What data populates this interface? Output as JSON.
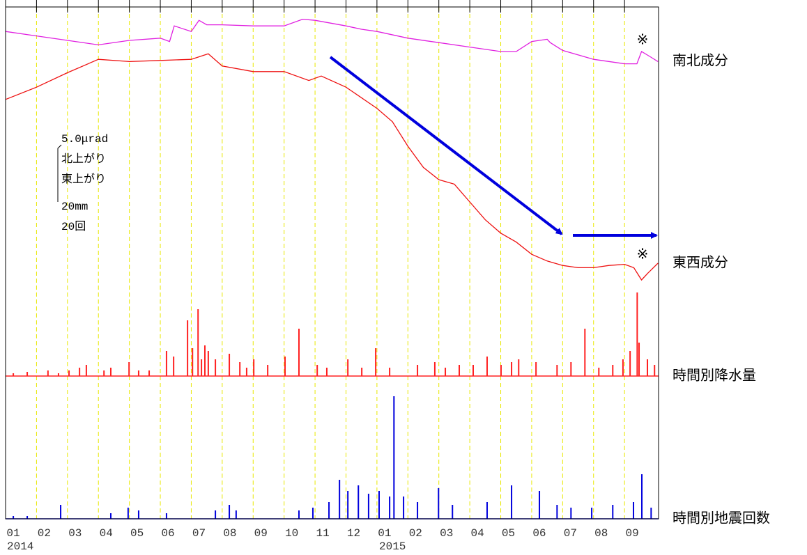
{
  "chart_data": [
    {
      "type": "line",
      "xlim": [
        0,
        21.1
      ],
      "xticks": [
        {
          "value": 0,
          "label": "01"
        },
        {
          "value": 1,
          "label": "02"
        },
        {
          "value": 2,
          "label": "03"
        },
        {
          "value": 3,
          "label": "04"
        },
        {
          "value": 4,
          "label": "05"
        },
        {
          "value": 5,
          "label": "06"
        },
        {
          "value": 6,
          "label": "07"
        },
        {
          "value": 7,
          "label": "08"
        },
        {
          "value": 8,
          "label": "09"
        },
        {
          "value": 9,
          "label": "10"
        },
        {
          "value": 10,
          "label": "11"
        },
        {
          "value": 11,
          "label": "12"
        },
        {
          "value": 12,
          "label": "01"
        },
        {
          "value": 13,
          "label": "02"
        },
        {
          "value": 14,
          "label": "03"
        },
        {
          "value": 15,
          "label": "04"
        },
        {
          "value": 16,
          "label": "05"
        },
        {
          "value": 17,
          "label": "06"
        },
        {
          "value": 18,
          "label": "07"
        },
        {
          "value": 19,
          "label": "08"
        },
        {
          "value": 20,
          "label": "09"
        }
      ],
      "year_labels": [
        "2014",
        "2015"
      ],
      "ylim": [
        0,
        26
      ],
      "scale_labels": [
        "5.0μrad",
        "北上がり",
        "東上がり",
        "20mm",
        "20回"
      ],
      "notes": [
        "※",
        "※"
      ],
      "series": [
        {
          "name": "南北成分",
          "color": "#e020e0",
          "x": [
            0,
            1,
            2,
            3,
            4,
            5,
            5.3,
            5.45,
            6,
            6.25,
            6.5,
            7,
            8,
            9,
            9.6,
            10,
            11,
            11.5,
            12,
            13,
            14,
            15,
            16,
            16.5,
            17,
            17.5,
            17.6,
            18,
            19,
            20,
            20.4,
            20.55,
            20.85,
            21.08
          ],
          "values": [
            23.8,
            23.4,
            23.0,
            22.6,
            23.0,
            23.2,
            22.9,
            24.3,
            23.8,
            24.8,
            24.4,
            24.4,
            24.3,
            24.3,
            24.9,
            24.8,
            24.3,
            24.0,
            23.8,
            23.2,
            22.8,
            22.4,
            22.0,
            22.0,
            22.9,
            23.1,
            22.8,
            22.1,
            21.3,
            20.9,
            20.9,
            22.0,
            21.5,
            21.1
          ]
        },
        {
          "name": "東西成分",
          "color": "#ee1111",
          "x": [
            0,
            1,
            2,
            3,
            4,
            5,
            6,
            6.55,
            7,
            8,
            9,
            9.8,
            10.2,
            11,
            12,
            12.5,
            13,
            13.5,
            14,
            14.5,
            15,
            15.5,
            16,
            16.5,
            17,
            17.5,
            18,
            18.5,
            19,
            19.5,
            20,
            20.3,
            20.55,
            20.75,
            21.08
          ],
          "values": [
            17.7,
            18.8,
            20.1,
            21.3,
            21.1,
            21.2,
            21.3,
            21.8,
            20.7,
            20.2,
            20.2,
            19.4,
            19.8,
            18.8,
            16.9,
            15.7,
            13.5,
            11.6,
            10.5,
            10.1,
            8.5,
            6.9,
            5.7,
            4.9,
            3.8,
            3.2,
            2.8,
            2.6,
            2.6,
            2.8,
            2.9,
            2.6,
            1.5,
            2.1,
            3.0
          ]
        }
      ]
    },
    {
      "type": "bar",
      "xlim": [
        0,
        21.1
      ],
      "ylim": [
        0,
        30
      ],
      "series": [
        {
          "name": "時間別降水量",
          "color": "#ff2020",
          "x": [
            0.25,
            0.7,
            1.37,
            1.71,
            2.05,
            2.39,
            2.61,
            3.18,
            3.4,
            3.99,
            4.3,
            4.64,
            5.2,
            5.43,
            5.88,
            6.04,
            6.22,
            6.33,
            6.44,
            6.55,
            6.78,
            7.23,
            7.57,
            7.79,
            8.02,
            8.47,
            9.03,
            9.48,
            10.07,
            10.38,
            11.06,
            11.51,
            11.96,
            12.41,
            13.31,
            13.87,
            14.21,
            14.66,
            15.11,
            15.56,
            16.01,
            16.35,
            16.58,
            17.14,
            17.82,
            18.27,
            18.72,
            19.17,
            19.62,
            19.95,
            20.18,
            20.41,
            20.47,
            20.74,
            20.97
          ],
          "values": [
            1,
            1.5,
            2,
            1,
            2,
            3,
            4,
            2,
            3,
            5,
            2,
            2,
            9,
            7,
            20,
            10,
            24,
            6,
            11,
            9,
            6,
            8,
            5,
            3,
            6,
            4,
            7,
            17,
            4,
            3,
            6,
            3,
            10,
            3,
            4,
            5,
            3,
            4,
            4,
            7,
            4,
            5,
            6,
            5,
            4,
            5,
            17,
            3,
            4,
            6,
            9,
            30,
            12,
            6,
            4
          ]
        }
      ]
    },
    {
      "type": "bar",
      "xlim": [
        0,
        21.1
      ],
      "ylim": [
        0,
        44
      ],
      "series": [
        {
          "name": "時間別地震回数",
          "color": "#0000dd",
          "x": [
            0.25,
            0.7,
            1.78,
            3.4,
            3.96,
            4.3,
            5.2,
            6.78,
            7.23,
            7.45,
            9.48,
            9.93,
            10.45,
            10.79,
            11.06,
            11.4,
            11.73,
            12.07,
            12.41,
            12.55,
            12.86,
            13.31,
            13.99,
            14.44,
            15.56,
            16.35,
            17.25,
            17.82,
            18.27,
            18.94,
            19.62,
            20.29,
            20.56,
            20.86
          ],
          "values": [
            1,
            1,
            5,
            2,
            4,
            3,
            2,
            3,
            5,
            3,
            3,
            4,
            6,
            14,
            10,
            12,
            9,
            10,
            8,
            44,
            8,
            6,
            11,
            5,
            6,
            12,
            10,
            5,
            4,
            4,
            5,
            6,
            16,
            4
          ]
        }
      ]
    }
  ]
}
